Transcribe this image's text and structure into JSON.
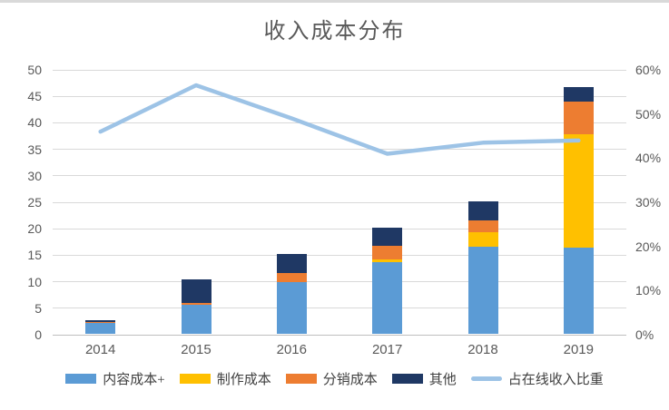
{
  "chart_data": {
    "type": "bar",
    "subtype": "stacked-bars-with-line",
    "title": "收入成本分布",
    "categories": [
      "2014",
      "2015",
      "2016",
      "2017",
      "2018",
      "2019"
    ],
    "series": [
      {
        "name": "内容成本+",
        "type": "bar",
        "color": "#5B9BD5",
        "values": [
          2.0,
          5.4,
          9.7,
          13.5,
          16.5,
          16.3
        ]
      },
      {
        "name": "制作成本",
        "type": "bar",
        "color": "#FFC000",
        "values": [
          0,
          0,
          0,
          0.6,
          2.6,
          21.4
        ]
      },
      {
        "name": "分销成本",
        "type": "bar",
        "color": "#ED7D31",
        "values": [
          0.2,
          0.4,
          1.8,
          2.6,
          2.3,
          6.1
        ]
      },
      {
        "name": "其他",
        "type": "bar",
        "color": "#1F3864",
        "values": [
          0.3,
          4.4,
          3.5,
          3.4,
          3.6,
          2.7
        ]
      },
      {
        "name": "占在线收入比重",
        "type": "line",
        "axis": "right",
        "color": "#9DC3E6",
        "values": [
          46,
          56.5,
          49,
          41,
          43.5,
          44
        ]
      }
    ],
    "left_axis": {
      "min": 0,
      "max": 50,
      "step": 5,
      "ticks": [
        "0",
        "5",
        "10",
        "15",
        "20",
        "25",
        "30",
        "35",
        "40",
        "45",
        "50"
      ]
    },
    "right_axis": {
      "min": 0,
      "max": 60,
      "step": 10,
      "ticks": [
        "0%",
        "10%",
        "20%",
        "30%",
        "40%",
        "50%",
        "60%"
      ]
    },
    "grid": "horizontal",
    "legend_position": "bottom",
    "colors": {
      "grid": "#d9d9d9",
      "axis_text": "#595959",
      "title_text": "#595959",
      "legend_text": "#3f3f3f",
      "top_border": "#d9d9d9"
    }
  }
}
